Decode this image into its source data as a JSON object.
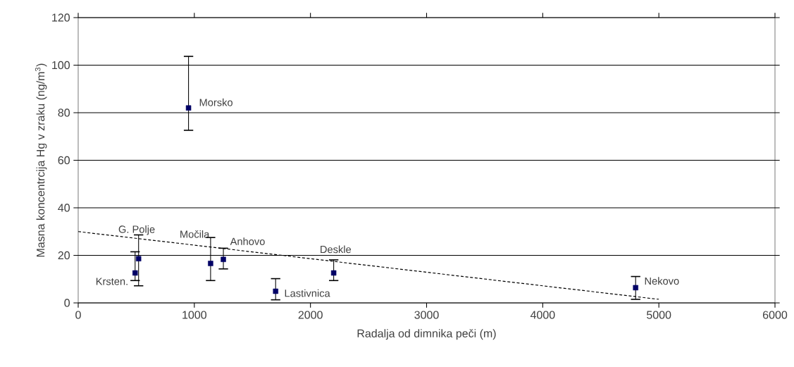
{
  "chart_data": {
    "type": "scatter",
    "xlabel": "Radalja od dimnika peči (m)",
    "ylabel": "Masna koncentrcija Hg v zraku (ng/m$^{3}$)",
    "xlim": [
      0,
      6000
    ],
    "xticks": [
      0,
      1000,
      2000,
      3000,
      4000,
      5000,
      6000
    ],
    "ylim": [
      0,
      120
    ],
    "yticks": [
      0,
      20,
      40,
      60,
      80,
      100,
      120
    ],
    "grid": "y",
    "marker": "square",
    "series": [
      {
        "color": "#000066",
        "x": [
          490,
          520,
          950,
          1140,
          1250,
          1700,
          2200,
          4800
        ],
        "values": [
          12.6,
          18.6,
          82,
          16.6,
          18.3,
          4.9,
          12.6,
          6.4
        ],
        "errors": [
          [
            9.4,
            21.5
          ],
          [
            7.2,
            28.6
          ],
          [
            72.6,
            103.7
          ],
          [
            9.4,
            27.5
          ],
          [
            14.3,
            23
          ],
          [
            1.3,
            10.2
          ],
          [
            9.4,
            18.1
          ],
          [
            1.5,
            11.1
          ]
        ]
      },
      {
        "type": "line",
        "color": "#000000",
        "line_style": "dashed",
        "marker": "none",
        "x": [
          0,
          5000
        ],
        "values": [
          30,
          1.5
        ]
      }
    ],
    "annotations": [
      {
        "text": "Krsten.",
        "x": 490,
        "y": 12.6
      },
      {
        "text": "G. Polje",
        "x": 520,
        "y": 18.6
      },
      {
        "text": "Morsko",
        "x": 950,
        "y": 82
      },
      {
        "text": "Močila",
        "x": 1140,
        "y": 16.6
      },
      {
        "text": "Anhovo",
        "x": 1250,
        "y": 18.3
      },
      {
        "text": "Lastivnica",
        "x": 1700,
        "y": 4.9
      },
      {
        "text": "Deskle",
        "x": 2200,
        "y": 12.6
      },
      {
        "text": "Nekovo",
        "x": 4800,
        "y": 6.4
      }
    ]
  }
}
